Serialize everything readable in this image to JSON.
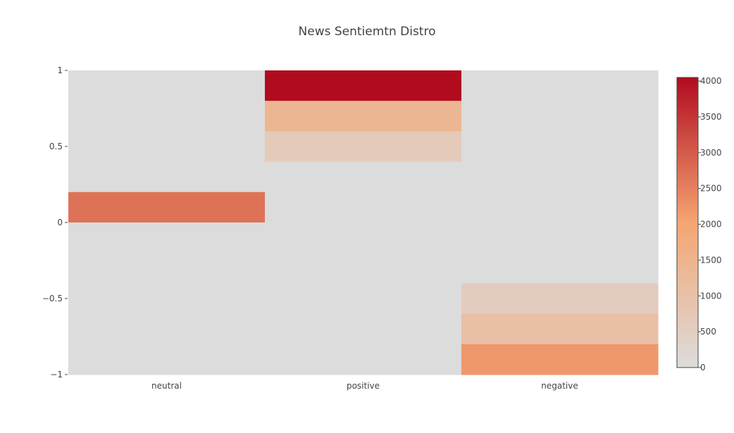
{
  "chart_data": {
    "type": "heatmap",
    "title": "News Sentiemtn Distro",
    "xlabel": "",
    "ylabel": "",
    "categories": [
      "neutral",
      "positive",
      "negative"
    ],
    "y_bins": [
      {
        "from": 0.8,
        "to": 1.0
      },
      {
        "from": 0.6,
        "to": 0.8
      },
      {
        "from": 0.4,
        "to": 0.6
      },
      {
        "from": 0.2,
        "to": 0.4
      },
      {
        "from": 0.0,
        "to": 0.2
      },
      {
        "from": -0.2,
        "to": 0.0
      },
      {
        "from": -0.4,
        "to": -0.2
      },
      {
        "from": -0.6,
        "to": -0.4
      },
      {
        "from": -0.8,
        "to": -0.6
      },
      {
        "from": -1.0,
        "to": -0.8
      }
    ],
    "z": [
      [
        0,
        4050,
        0
      ],
      [
        0,
        1400,
        0
      ],
      [
        0,
        680,
        0
      ],
      [
        0,
        0,
        0
      ],
      [
        2700,
        0,
        0
      ],
      [
        0,
        0,
        0
      ],
      [
        0,
        0,
        0
      ],
      [
        0,
        0,
        600
      ],
      [
        0,
        0,
        1050
      ],
      [
        0,
        0,
        2200
      ]
    ],
    "ylim": [
      -1,
      1
    ],
    "yticks": [
      "1",
      "0.5",
      "0",
      "−0.5",
      "−1"
    ],
    "ytick_values": [
      1,
      0.5,
      0,
      -0.5,
      -1
    ],
    "colorscale": {
      "zmin": 0,
      "zmax": 4050,
      "stops": [
        "#dcdcdc",
        "#f5a572",
        "#b10b1f"
      ],
      "tick_values": [
        0,
        500,
        1000,
        1500,
        2000,
        2500,
        3000,
        3500,
        4000
      ],
      "tick_labels": [
        "0",
        "500",
        "1000",
        "1500",
        "2000",
        "2500",
        "3000",
        "3500",
        "4000"
      ]
    },
    "grid": false,
    "legend": "colorbar-right"
  }
}
